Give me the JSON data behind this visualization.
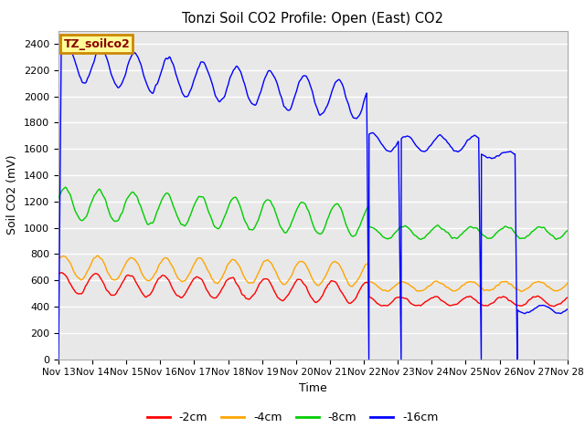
{
  "title": "Tonzi Soil CO2 Profile: Open (East) CO2",
  "ylabel": "Soil CO2 (mV)",
  "xlabel": "Time",
  "legend_label": "TZ_soilco2",
  "series_labels": [
    "-2cm",
    "-4cm",
    "-8cm",
    "-16cm"
  ],
  "series_colors": [
    "#ff0000",
    "#ffa500",
    "#00cc00",
    "#0000ff"
  ],
  "ylim": [
    0,
    2500
  ],
  "plot_bg": "#e8e8e8",
  "tick_labels": [
    "Nov 13",
    "Nov 14",
    "Nov 15",
    "Nov 16",
    "Nov 17",
    "Nov 18",
    "Nov 19",
    "Nov 20",
    "Nov 21",
    "Nov 22",
    "Nov 23",
    "Nov 24",
    "Nov 25",
    "Nov 26",
    "Nov 27",
    "Nov 28"
  ],
  "legend_box_color": "#ffff99",
  "legend_box_edge": "#cc8800",
  "legend_text_color": "#880000",
  "grid_color": "#d0d0d0"
}
